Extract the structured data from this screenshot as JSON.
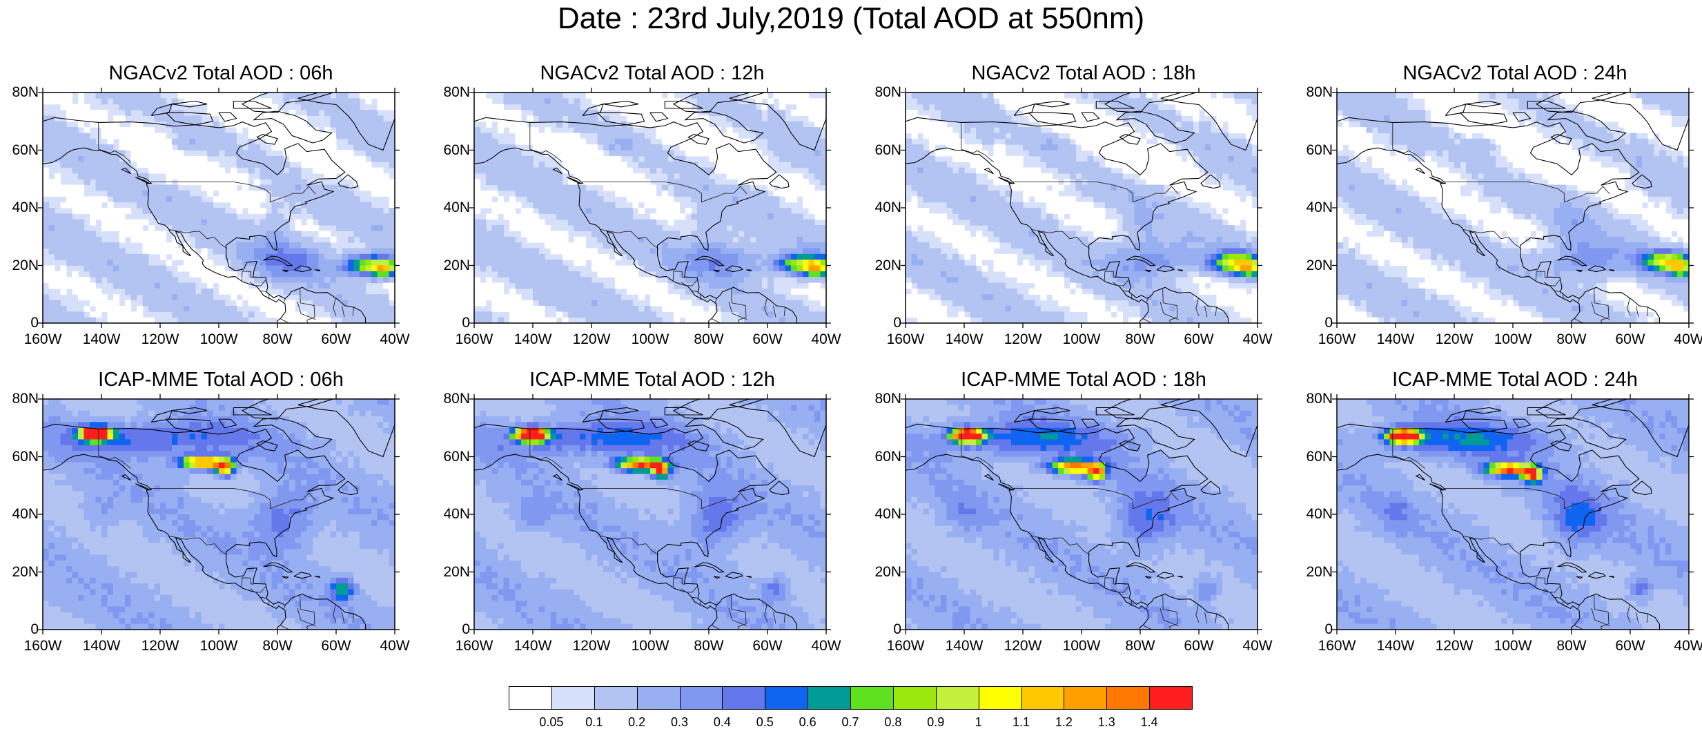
{
  "title": "Date : 23rd July,2019 (Total AOD at 550nm)",
  "lat_ticks": [
    "80N",
    "60N",
    "40N",
    "20N",
    "0"
  ],
  "lon_ticks": [
    "160W",
    "140W",
    "120W",
    "100W",
    "80W",
    "60W",
    "40W"
  ],
  "panels": [
    {
      "title": "NGACv2 Total AOD : 06h",
      "model": "NGACv2",
      "hour": "06h"
    },
    {
      "title": "NGACv2 Total AOD : 12h",
      "model": "NGACv2",
      "hour": "12h"
    },
    {
      "title": "NGACv2 Total AOD : 18h",
      "model": "NGACv2",
      "hour": "18h"
    },
    {
      "title": "NGACv2 Total AOD : 24h",
      "model": "NGACv2",
      "hour": "24h"
    },
    {
      "title": "ICAP-MME Total AOD : 06h",
      "model": "ICAP-MME",
      "hour": "06h"
    },
    {
      "title": "ICAP-MME Total AOD : 12h",
      "model": "ICAP-MME",
      "hour": "12h"
    },
    {
      "title": "ICAP-MME Total AOD : 18h",
      "model": "ICAP-MME",
      "hour": "18h"
    },
    {
      "title": "ICAP-MME Total AOD : 24h",
      "model": "ICAP-MME",
      "hour": "24h"
    }
  ],
  "colorbar": {
    "colors": [
      "#ffffff",
      "#d6e0fa",
      "#b4c4f2",
      "#98b0f2",
      "#8198f0",
      "#6478ec",
      "#0f64f0",
      "#009b96",
      "#5ee11e",
      "#9be80f",
      "#c2f03c",
      "#ffff00",
      "#ffc800",
      "#ffa000",
      "#ff7800",
      "#ff1e1e"
    ],
    "labels": [
      "0.05",
      "0.1",
      "0.2",
      "0.3",
      "0.4",
      "0.5",
      "0.6",
      "0.7",
      "0.8",
      "0.9",
      "1",
      "1.1",
      "1.2",
      "1.3",
      "1.4"
    ]
  }
}
